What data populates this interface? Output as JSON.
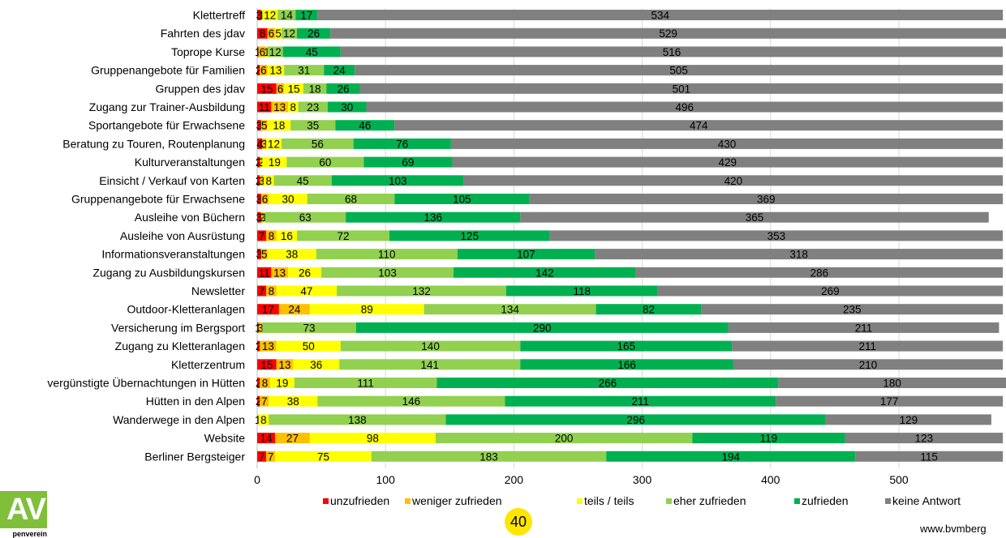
{
  "chart_data": {
    "type": "bar",
    "orientation": "horizontal",
    "stacked": true,
    "title": "",
    "xlabel": "",
    "ylabel": "",
    "xlim": [
      0,
      585
    ],
    "x_ticks": [
      0,
      100,
      200,
      300,
      400,
      500
    ],
    "grid": true,
    "legend_position": "bottom",
    "categories": [
      "Klettertreff",
      "Fahrten des jdav",
      "Toprope Kurse",
      "Gruppenangebote für Familien",
      "Gruppen des jdav",
      "Zugang zur Trainer-Ausbildung",
      "Sportangebote für Erwachsene",
      "Beratung zu Touren, Routenplanung",
      "Kulturveranstaltungen",
      "Einsicht / Verkauf von Karten",
      "Gruppenangebote für Erwachsene",
      "Ausleihe von Büchern",
      "Ausleihe von Ausrüstung",
      "Informationsveranstaltungen",
      "Zugang zu Ausbildungskursen",
      "Newsletter",
      "Outdoor-Kletteranlagen",
      "Versicherung im Bergsport",
      "Zugang zu Kletteranlagen",
      "Kletterzentrum",
      "vergünstigte Übernachtungen in Hütten",
      "Hütten in den Alpen",
      "Wanderwege in den Alpen",
      "Website",
      "Berliner Bergsteiger"
    ],
    "series": [
      {
        "name": "unzufrieden",
        "color": "#ff0000",
        "values": [
          3,
          8,
          1,
          2,
          15,
          11,
          3,
          4,
          2,
          2,
          3,
          3,
          7,
          3,
          11,
          7,
          17,
          1,
          2,
          15,
          2,
          2,
          0,
          14,
          7
        ]
      },
      {
        "name": "weniger zufrieden",
        "color": "#ffc000",
        "values": [
          1,
          6,
          6,
          6,
          6,
          13,
          5,
          3,
          2,
          3,
          6,
          2,
          8,
          5,
          13,
          8,
          24,
          3,
          13,
          13,
          8,
          7,
          1,
          27,
          7
        ]
      },
      {
        "name": "teils / teils",
        "color": "#ffff00",
        "values": [
          12,
          5,
          1,
          13,
          15,
          8,
          18,
          12,
          19,
          8,
          30,
          1,
          16,
          38,
          26,
          47,
          89,
          0,
          50,
          36,
          19,
          38,
          8,
          98,
          75
        ]
      },
      {
        "name": "eher zufrieden",
        "color": "#92d050",
        "values": [
          14,
          12,
          12,
          31,
          18,
          23,
          35,
          56,
          60,
          45,
          68,
          63,
          72,
          110,
          103,
          132,
          134,
          73,
          140,
          141,
          111,
          146,
          138,
          200,
          183
        ]
      },
      {
        "name": "zufrieden",
        "color": "#00b050",
        "values": [
          17,
          26,
          45,
          24,
          26,
          30,
          46,
          76,
          69,
          103,
          105,
          136,
          125,
          107,
          142,
          118,
          82,
          290,
          165,
          166,
          266,
          211,
          296,
          119,
          194
        ]
      },
      {
        "name": "keine Antwort",
        "color": "#808080",
        "values": [
          534,
          529,
          516,
          505,
          501,
          496,
          474,
          430,
          429,
          420,
          369,
          365,
          353,
          318,
          286,
          269,
          235,
          211,
          211,
          210,
          180,
          177,
          129,
          123,
          115
        ]
      }
    ]
  },
  "logo": {
    "letters": "AV",
    "caption": "penverein"
  },
  "page_number": "40",
  "footer_url": "www.bvmberg"
}
